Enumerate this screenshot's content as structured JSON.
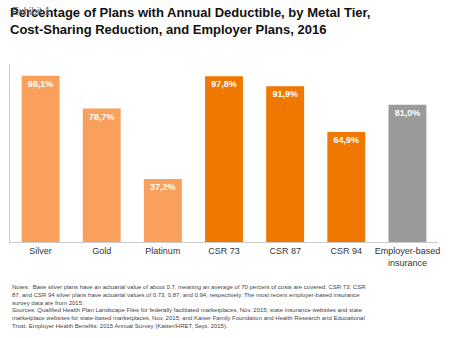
{
  "chart_data": {
    "type": "bar",
    "title": "Percentage of Plans with Annual Deductible, by Metal Tier,\nCost-Sharing Reduction, and Employer Plans, 2016",
    "annotations": [
      "Exhibit 1",
      "Notes:  Base silver plans have an actuarial value of about 0.7, meaning an average of 70 percent of costs are covered. CSR 73, CSR\n87, and CSR 94 silver plans have actuarial values of 0.73, 0.87, and 0.94, respectively. The most recent employer-based insurance\nsurvey data are from 2015.\nSources: Qualified Health Plan Landscape Files for federally facilitated marketplaces, Nov. 2015; state insurance websites and state\nmarketplace websites for state-based marketplaces, Nov. 2015; and Kaiser Family Foundation and Health Research and Educational\nTrust. Employer Health Benefits: 2015 Annual Survey (Kaiser/HRET, Sept. 2015)."
    ],
    "categories": [
      "Silver",
      "Gold",
      "Platinum",
      "CSR 73",
      "CSR 87",
      "CSR 94",
      "Employer-based\ninsurance"
    ],
    "values": [
      98.1,
      78.7,
      37.2,
      97.8,
      91.9,
      64.9,
      81.0
    ],
    "value_labels": [
      "98,1%",
      "78,7%",
      "37,2%",
      "97,8%",
      "91,9%",
      "64,9%",
      "81,0%"
    ],
    "colors": [
      "#F9A05C",
      "#F9A05C",
      "#F9A05C",
      "#F07800",
      "#F07800",
      "#F07800",
      "#9A9A9A"
    ],
    "ylim": [
      0,
      105
    ],
    "data_labels": true,
    "tick_labels": "x",
    "grid": false
  }
}
